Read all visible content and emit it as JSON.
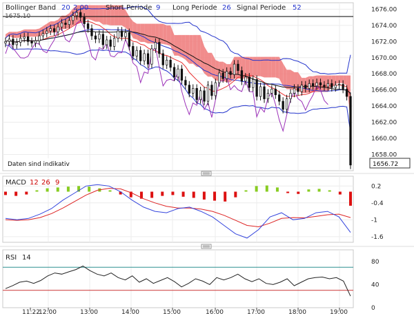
{
  "chart_data": [
    {
      "type": "candlestick",
      "indicator": {
        "name": "Bollinger Band",
        "params": [
          "20",
          "2.00"
        ]
      },
      "ichimoku": [
        {
          "label": "Short Periode",
          "value": "9"
        },
        {
          "label": "Long Periode",
          "value": "26"
        },
        {
          "label": "Signal Periode",
          "value": "52"
        }
      ],
      "y_ticks": [
        1676,
        1674,
        1672,
        1670,
        1668,
        1666,
        1664,
        1662,
        1660,
        1658
      ],
      "y_tick_labels": [
        "1676.00",
        "1674.00",
        "1672.00",
        "1670.00",
        "1668.00",
        "1666.00",
        "1664.00",
        "1662.00",
        "1660.00",
        "1658.00"
      ],
      "ylim": [
        1656.0,
        1676.8
      ],
      "reference_line": 1675.1,
      "ref_label": "1675.10",
      "last_price": 1656.72,
      "last_price_label": "1656.72",
      "note": "Daten sind indikativ",
      "close": [
        1672.0,
        1672.3,
        1671.6,
        1671.9,
        1672.4,
        1672.6,
        1672.0,
        1671.8,
        1672.1,
        1672.7,
        1673.0,
        1673.3,
        1673.6,
        1673.2,
        1673.8,
        1674.3,
        1674.1,
        1674.6,
        1675.2,
        1675.6,
        1675.0,
        1674.2,
        1673.6,
        1672.7,
        1672.3,
        1672.9,
        1671.6,
        1672.2,
        1671.4,
        1672.4,
        1673.3,
        1672.6,
        1673.1,
        1671.4,
        1670.2,
        1670.9,
        1669.6,
        1670.5,
        1669.2,
        1671.1,
        1671.9,
        1670.5,
        1669.1,
        1669.7,
        1668.8,
        1667.6,
        1668.6,
        1667.2,
        1666.6,
        1665.6,
        1666.2,
        1664.8,
        1665.9,
        1664.6,
        1666.6,
        1665.3,
        1666.9,
        1668.1,
        1667.4,
        1668.3,
        1667.9,
        1669.2,
        1668.4,
        1667.1,
        1667.6,
        1666.3,
        1667.3,
        1665.2,
        1666.4,
        1664.9,
        1665.6,
        1666.1,
        1665.4,
        1664.6,
        1663.6,
        1664.9,
        1665.6,
        1666.2,
        1665.8,
        1666.6,
        1666.2,
        1666.8,
        1666.5,
        1666.9,
        1666.6,
        1666.4,
        1666.8,
        1666.3,
        1666.6,
        1666.7,
        1666.1,
        1665.2,
        1656.7
      ],
      "bollinger_upper_approx": [
        1677.0,
        1675.6,
        1674.4,
        1673.8,
        1674.6,
        1675.8,
        1676.6,
        1676.3,
        1675.3,
        1674.9,
        1674.8,
        1674.3,
        1673.6,
        1673.1,
        1672.3,
        1671.6,
        1671.1,
        1670.6,
        1670.2,
        1669.8,
        1669.4,
        1669.1,
        1668.4,
        1668.9,
        1670.0,
        1670.4,
        1670.1,
        1669.0,
        1668.3,
        1667.9,
        1667.4,
        1667.1,
        1667.1,
        1666.8,
        1666.4,
        1666.2,
        1665.6
      ],
      "macd": {
        "params": [
          "12",
          "26",
          "9"
        ],
        "y_ticks": [
          0.2,
          -0.4,
          -1,
          -1.6
        ],
        "y_tick_labels": [
          "0.2",
          "-0.4",
          "-1",
          "-1.6"
        ],
        "ylim": [
          -1.8,
          0.55
        ],
        "macd": [
          -0.95,
          -1.0,
          -0.95,
          -0.8,
          -0.6,
          -0.3,
          -0.05,
          0.2,
          0.25,
          0.2,
          0.0,
          -0.3,
          -0.55,
          -0.7,
          -0.75,
          -0.6,
          -0.55,
          -0.7,
          -0.9,
          -1.2,
          -1.5,
          -1.65,
          -1.35,
          -0.9,
          -0.75,
          -1.0,
          -0.95,
          -0.75,
          -0.7,
          -0.9,
          -1.45
        ],
        "signal": [
          -1.0,
          -1.02,
          -1.0,
          -0.92,
          -0.78,
          -0.58,
          -0.35,
          -0.12,
          0.05,
          0.12,
          0.1,
          -0.05,
          -0.25,
          -0.4,
          -0.52,
          -0.58,
          -0.58,
          -0.62,
          -0.7,
          -0.84,
          -1.02,
          -1.2,
          -1.25,
          -1.12,
          -0.95,
          -0.92,
          -0.93,
          -0.88,
          -0.82,
          -0.8,
          -0.92
        ],
        "histogram": [
          -0.12,
          -0.15,
          -0.1,
          0.05,
          0.12,
          0.15,
          0.18,
          0.2,
          0.18,
          0.12,
          0.05,
          -0.1,
          -0.2,
          -0.25,
          -0.22,
          -0.15,
          -0.12,
          -0.18,
          -0.22,
          -0.28,
          -0.32,
          -0.35,
          -0.2,
          0.05,
          0.2,
          0.22,
          0.15,
          -0.05,
          -0.08,
          0.08,
          0.1,
          0.05,
          -0.1,
          -0.5
        ]
      },
      "rsi": {
        "param": "14",
        "y_ticks": [
          80,
          40,
          0
        ],
        "y_tick_labels": [
          "80",
          "40",
          "0"
        ],
        "ylim": [
          0,
          100
        ],
        "overbought": 70,
        "oversold": 30,
        "values": [
          33,
          38,
          44,
          46,
          42,
          47,
          55,
          60,
          58,
          62,
          66,
          72,
          64,
          58,
          55,
          60,
          52,
          48,
          55,
          44,
          50,
          42,
          47,
          52,
          45,
          36,
          42,
          50,
          46,
          40,
          52,
          48,
          52,
          58,
          50,
          45,
          50,
          42,
          40,
          44,
          50,
          38,
          44,
          50,
          52,
          53,
          50,
          52,
          46,
          20
        ]
      },
      "x_ticks": [
        "11:22",
        "12:00",
        "13:00",
        "14:00",
        "15:00",
        "16:00",
        "17:00",
        "18:00",
        "19:00"
      ],
      "colors": {
        "up": "#ffffff",
        "down": "#111111",
        "bb": "#2233cc",
        "tenkan": "#e83030",
        "kijun": "#111111",
        "chikou": "#9b30b8",
        "cloud_bear": "#f08080",
        "cloud_bull": "#8fb8e0",
        "macd_pos": "#88cc22",
        "macd_neg": "#dd1111",
        "ob_line": "#2a8f8f",
        "os_line": "#cc3333"
      }
    }
  ]
}
